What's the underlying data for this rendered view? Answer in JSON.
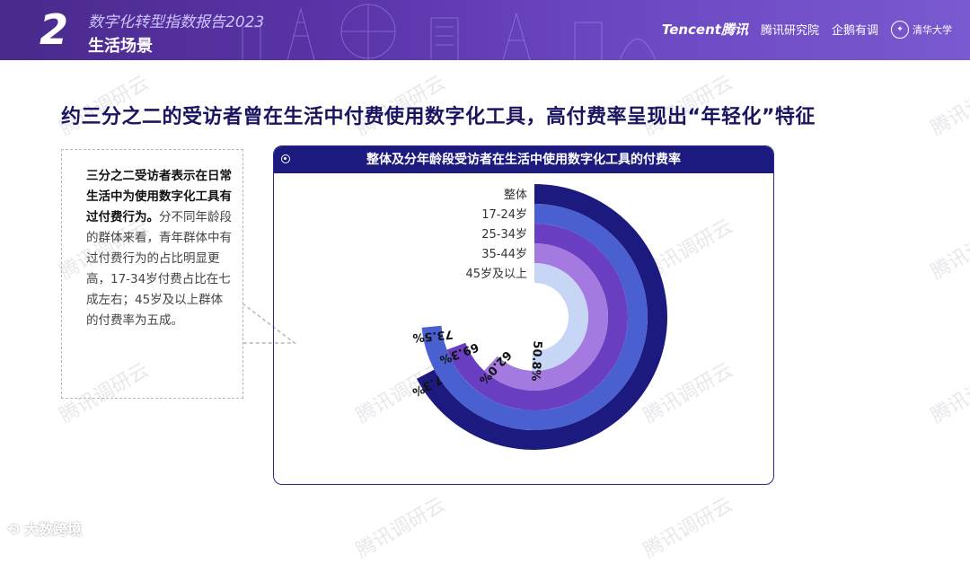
{
  "header": {
    "section_number": "2",
    "report_title": "数字化转型指数报告2023",
    "section_title": "生活场景",
    "logos": {
      "tencent": "Tencent腾讯",
      "tencent_research": "腾讯研究院",
      "penguin_think": "企鹅有调",
      "tsinghua": "清华大学"
    }
  },
  "headline": "约三分之二的受访者曾在生活中付费使用数字化工具，高付费率呈现出“年轻化”特征",
  "callout": {
    "bold_text": "三分之二受访者表示在日常生活中为使用数字化工具有过付费行为。",
    "body_text": "分不同年龄段的群体来看，青年群体中有过付费行为的占比明显更高，17-34岁付费占比在七成左右；45岁及以上群体的付费率为五成。"
  },
  "panel": {
    "title": "整体及分年龄段受访者在生活中使用数字化工具的付费率"
  },
  "chart_data": {
    "type": "radial_bar",
    "title": "整体及分年龄段受访者在生活中使用数字化工具的付费率",
    "categories": [
      "整体",
      "17-24岁",
      "25-34岁",
      "35-44岁",
      "45岁及以上"
    ],
    "values": [
      67.3,
      73.5,
      69.3,
      62.0,
      50.8
    ],
    "value_labels": [
      "67.3%",
      "73.5%",
      "69.3%",
      "62.0%",
      "50.8%"
    ],
    "max": 100,
    "colors": [
      "#1c1a7e",
      "#4a5fd0",
      "#6a3ec0",
      "#a47ae0",
      "#c8d6f6"
    ]
  },
  "watermark": "腾讯调研云",
  "footer": "大数跨境"
}
